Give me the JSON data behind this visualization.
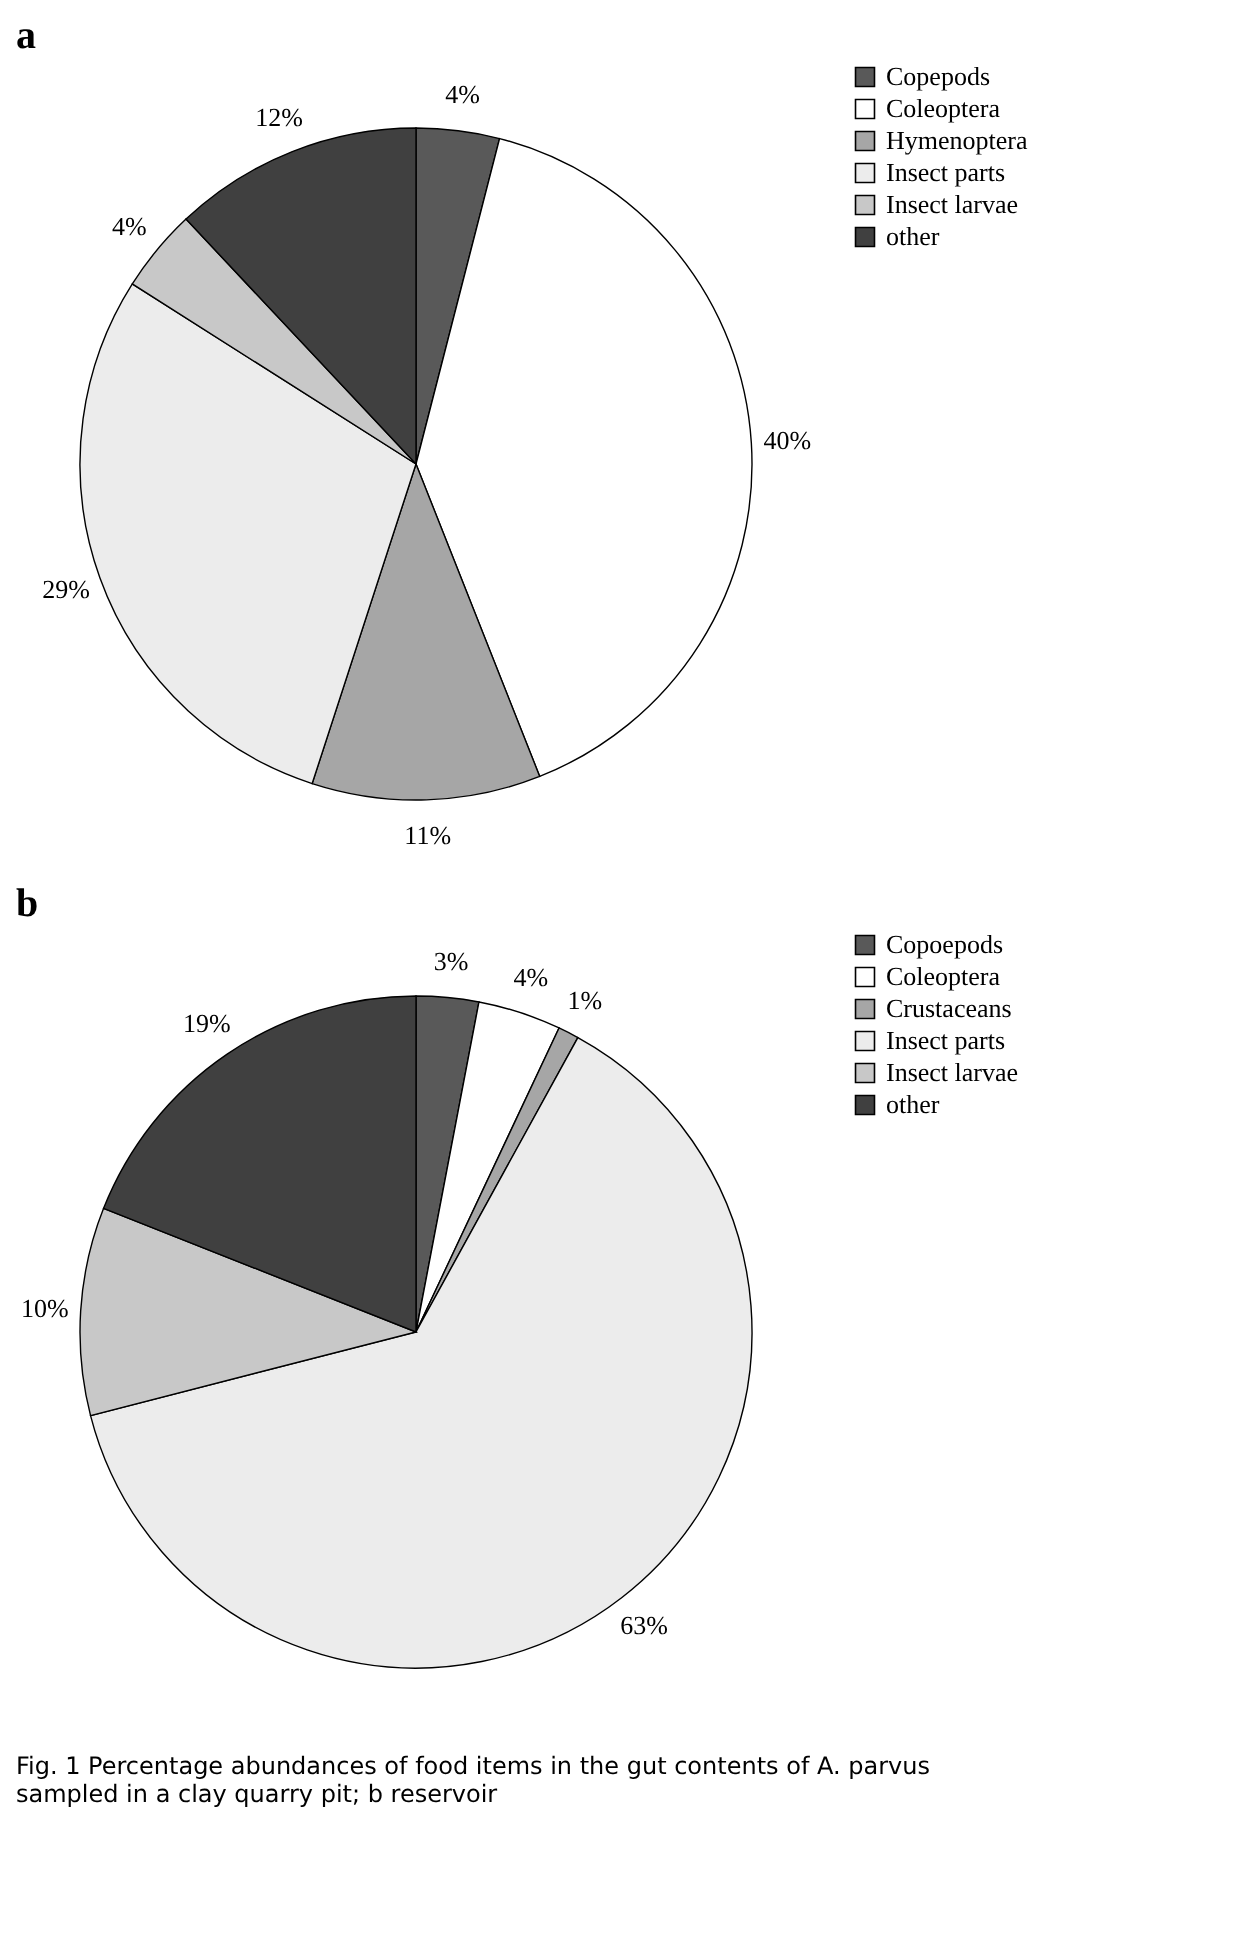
{
  "chart_data": [
    {
      "type": "pie",
      "title": "a",
      "categories": [
        "Copepods",
        "Coleoptera",
        "Hymenoptera",
        "Insect parts",
        "Insect larvae",
        "other"
      ],
      "values": [
        4,
        40,
        11,
        29,
        4,
        12
      ],
      "value_labels": [
        "4%",
        "40%",
        "11%",
        "29%",
        "4%",
        "12%"
      ],
      "colors": [
        "#595959",
        "#ffffff",
        "#a6a6a6",
        "#ececec",
        "#c8c8c8",
        "#404040"
      ],
      "legend": "right"
    },
    {
      "type": "pie",
      "title": "b",
      "categories": [
        "Copoepods",
        "Coleoptera",
        "Crustaceans",
        "Insect parts",
        "Insect larvae",
        "other"
      ],
      "values": [
        3,
        4,
        1,
        63,
        10,
        19
      ],
      "value_labels": [
        "3%",
        "4%",
        "1%",
        "63%",
        "10%",
        "19%"
      ],
      "colors": [
        "#595959",
        "#ffffff",
        "#a6a6a6",
        "#ececec",
        "#c8c8c8",
        "#404040"
      ],
      "legend": "right",
      "annotations": [
        "Fig. 1  Percentage abundances of food items in the gut contents of A. parvus sampled in a clay quarry pit; b reservoir"
      ]
    }
  ]
}
